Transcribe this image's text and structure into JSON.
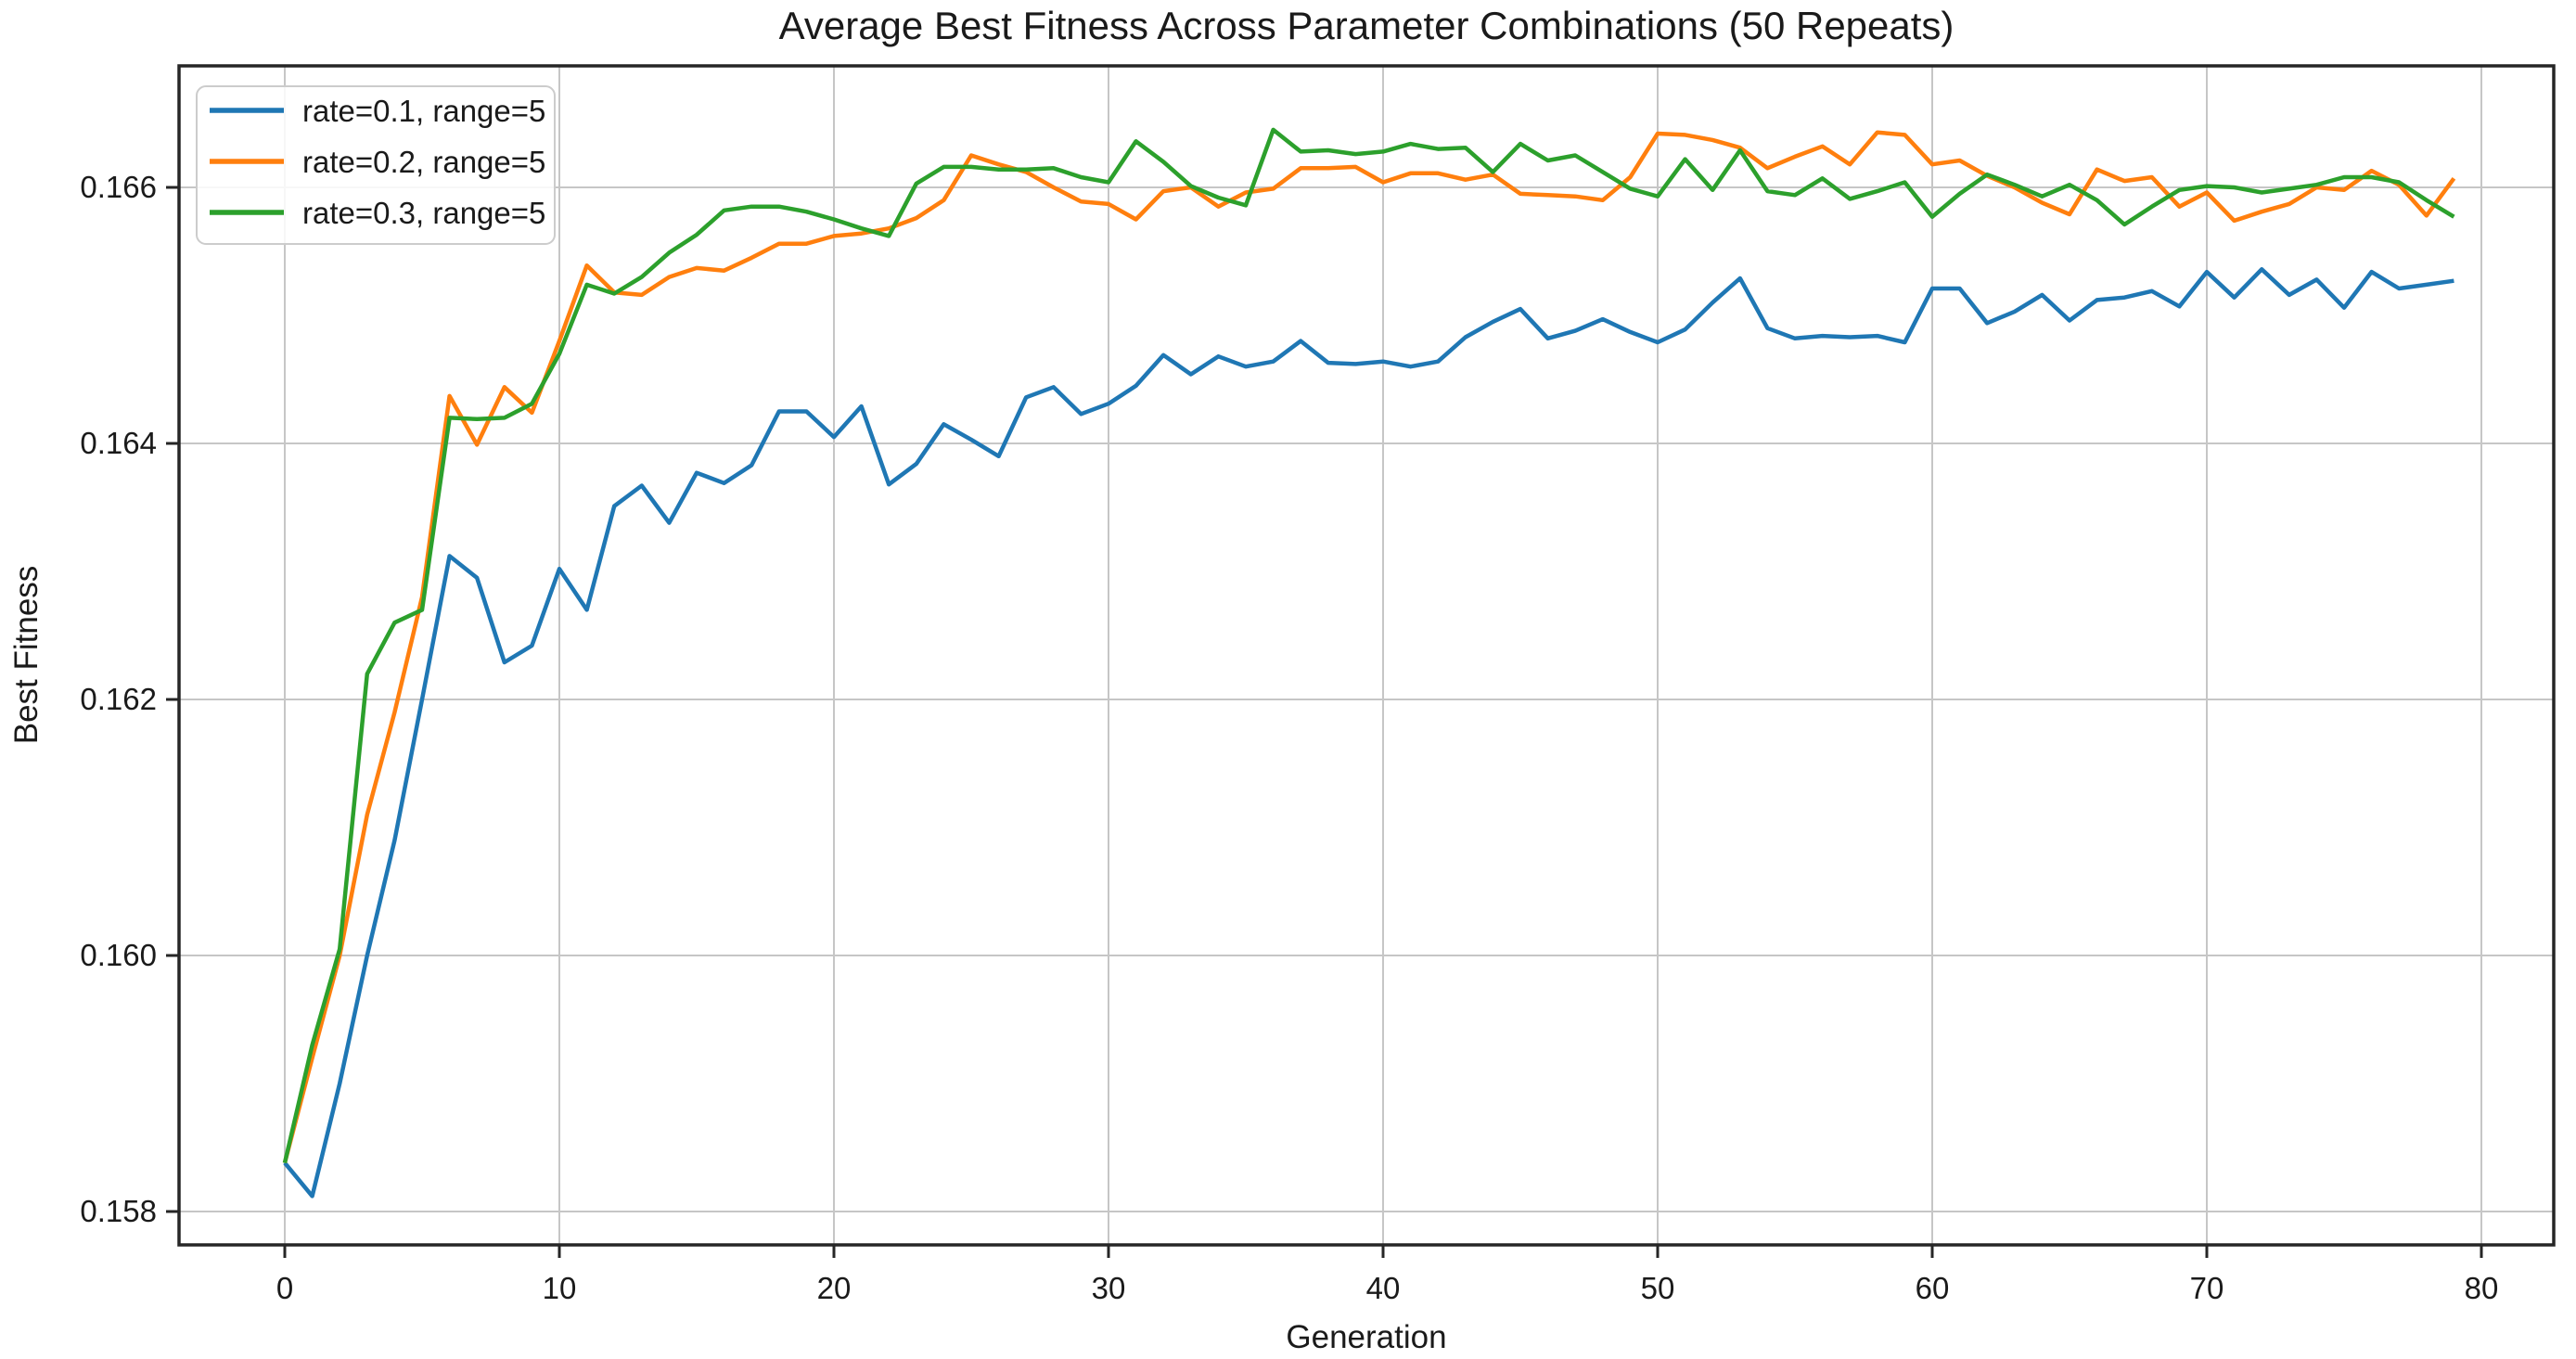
{
  "chart_data": {
    "type": "line",
    "title": "Average Best Fitness Across Parameter Combinations (50 Repeats)",
    "xlabel": "Generation",
    "ylabel": "Best Fitness",
    "grid": true,
    "legend_position": "upper left",
    "xlim": [
      -3.9,
      82.8
    ],
    "ylim": [
      0.1577,
      0.167
    ],
    "x_ticks": [
      0,
      10,
      20,
      30,
      40,
      50,
      60,
      70,
      80
    ],
    "x_tick_labels": [
      "0",
      "10",
      "20",
      "30",
      "40",
      "50",
      "60",
      "70",
      "80"
    ],
    "y_ticks": [
      0.158,
      0.16,
      0.162,
      0.164,
      0.166
    ],
    "y_tick_labels": [
      "0.158",
      "0.160",
      "0.162",
      "0.164",
      "0.166"
    ],
    "x": [
      0,
      1,
      2,
      3,
      4,
      5,
      6,
      7,
      8,
      9,
      10,
      11,
      12,
      13,
      14,
      15,
      16,
      17,
      18,
      19,
      20,
      21,
      22,
      23,
      24,
      25,
      26,
      27,
      28,
      29,
      30,
      31,
      32,
      33,
      34,
      35,
      36,
      37,
      38,
      39,
      40,
      41,
      42,
      43,
      44,
      45,
      46,
      47,
      48,
      49,
      50,
      51,
      52,
      53,
      54,
      55,
      56,
      57,
      58,
      59,
      60,
      61,
      62,
      63,
      64,
      65,
      66,
      67,
      68,
      69,
      70,
      71,
      72,
      73,
      74,
      75,
      76,
      77,
      78,
      79
    ],
    "series": [
      {
        "name": "rate=0.1, range=5",
        "color": "#1f77b4",
        "values": [
          0.15838,
          0.15812,
          0.159,
          0.16,
          0.1609,
          0.162,
          0.16312,
          0.16295,
          0.16229,
          0.16242,
          0.16302,
          0.1627,
          0.16351,
          0.16367,
          0.16338,
          0.16377,
          0.16369,
          0.16383,
          0.16425,
          0.16425,
          0.16405,
          0.16429,
          0.16368,
          0.16384,
          0.16415,
          0.16403,
          0.1639,
          0.16436,
          0.16444,
          0.16423,
          0.16431,
          0.16445,
          0.16469,
          0.16454,
          0.16468,
          0.1646,
          0.16464,
          0.1648,
          0.16463,
          0.16462,
          0.16464,
          0.1646,
          0.16464,
          0.16483,
          0.16495,
          0.16505,
          0.16482,
          0.16488,
          0.16497,
          0.16487,
          0.16479,
          0.16489,
          0.1651,
          0.16529,
          0.1649,
          0.16482,
          0.16484,
          0.16483,
          0.16484,
          0.16479,
          0.16521,
          0.16521,
          0.16494,
          0.16503,
          0.16516,
          0.16496,
          0.16512,
          0.16514,
          0.16519,
          0.16507,
          0.16534,
          0.16514,
          0.16536,
          0.16516,
          0.16528,
          0.16506,
          0.16534,
          0.16521,
          0.16524,
          0.16527
        ]
      },
      {
        "name": "rate=0.2, range=5",
        "color": "#ff7f0e",
        "values": [
          0.15838,
          0.1592,
          0.16,
          0.1611,
          0.1619,
          0.1628,
          0.16437,
          0.16399,
          0.16444,
          0.16424,
          0.1648,
          0.16539,
          0.16518,
          0.16516,
          0.1653,
          0.16537,
          0.16535,
          0.16545,
          0.16556,
          0.16556,
          0.16562,
          0.16564,
          0.16568,
          0.16576,
          0.1659,
          0.16625,
          0.16618,
          0.16612,
          0.166,
          0.16589,
          0.16587,
          0.16575,
          0.16597,
          0.166,
          0.16585,
          0.16596,
          0.16599,
          0.16615,
          0.16615,
          0.16616,
          0.16604,
          0.16611,
          0.16611,
          0.16606,
          0.1661,
          0.16595,
          0.16594,
          0.16593,
          0.1659,
          0.16608,
          0.16642,
          0.16641,
          0.16637,
          0.16631,
          0.16615,
          0.16624,
          0.16632,
          0.16618,
          0.16643,
          0.16641,
          0.16618,
          0.16621,
          0.16609,
          0.166,
          0.16588,
          0.16579,
          0.16614,
          0.16605,
          0.16608,
          0.16585,
          0.16596,
          0.16574,
          0.16581,
          0.16587,
          0.166,
          0.16598,
          0.16613,
          0.16602,
          0.16578,
          0.16607
        ]
      },
      {
        "name": "rate=0.3, range=5",
        "color": "#2ca02c",
        "values": [
          0.15838,
          0.1593,
          0.16005,
          0.1622,
          0.1626,
          0.1627,
          0.1642,
          0.16419,
          0.1642,
          0.16431,
          0.1647,
          0.16524,
          0.16517,
          0.1653,
          0.16549,
          0.16563,
          0.16582,
          0.16585,
          0.16585,
          0.16581,
          0.16575,
          0.16568,
          0.16562,
          0.16603,
          0.16616,
          0.16616,
          0.16614,
          0.16614,
          0.16615,
          0.16608,
          0.16604,
          0.16636,
          0.1662,
          0.16601,
          0.16592,
          0.16586,
          0.16645,
          0.16628,
          0.16629,
          0.16626,
          0.16628,
          0.16634,
          0.1663,
          0.16631,
          0.16612,
          0.16634,
          0.16621,
          0.16625,
          0.16612,
          0.16599,
          0.16593,
          0.16622,
          0.16598,
          0.16629,
          0.16597,
          0.16594,
          0.16607,
          0.16591,
          0.16597,
          0.16604,
          0.16577,
          0.16595,
          0.1661,
          0.16602,
          0.16593,
          0.16602,
          0.1659,
          0.16571,
          0.16585,
          0.16598,
          0.16601,
          0.166,
          0.16596,
          0.16599,
          0.16602,
          0.16608,
          0.16608,
          0.16604,
          0.1659,
          0.16577
        ]
      }
    ]
  }
}
